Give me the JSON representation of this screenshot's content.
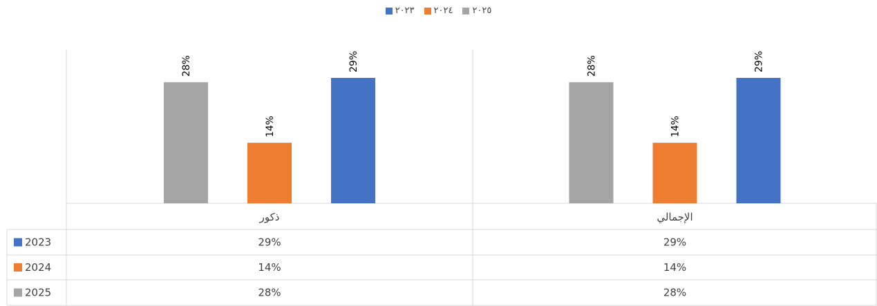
{
  "legend": [
    {
      "label": "٢٠٢٣",
      "color": "#4472C4"
    },
    {
      "label": "٢٠٢٤",
      "color": "#ED7D31"
    },
    {
      "label": "٢٠٢٥",
      "color": "#A5A5A5"
    }
  ],
  "chart_data": {
    "type": "bar",
    "categories": [
      "الإجمالي",
      "ذكور"
    ],
    "series": [
      {
        "name": "2023",
        "values": [
          29,
          29
        ],
        "color": "#4472C4"
      },
      {
        "name": "2024",
        "values": [
          14,
          14
        ],
        "color": "#ED7D31"
      },
      {
        "name": "2025",
        "values": [
          28,
          28
        ],
        "color": "#A5A5A5"
      }
    ],
    "data_labels": [
      [
        "29%",
        "14%",
        "28%"
      ],
      [
        "29%",
        "14%",
        "28%"
      ]
    ],
    "ylim": [
      0,
      34
    ],
    "legend_position": "top",
    "grid": false,
    "data_table": {
      "rows": [
        {
          "label": "2023",
          "values": [
            "29%",
            "29%"
          ]
        },
        {
          "label": "2024",
          "values": [
            "14%",
            "14%"
          ]
        },
        {
          "label": "2025",
          "values": [
            "28%",
            "28%"
          ]
        }
      ]
    }
  }
}
